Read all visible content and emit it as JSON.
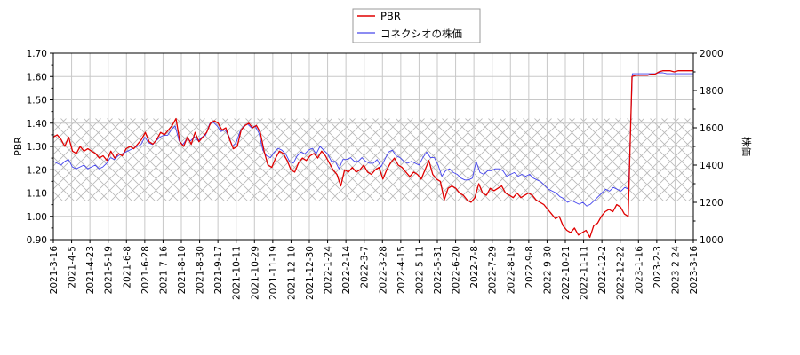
{
  "chart_data": {
    "type": "line",
    "title": "",
    "legend": {
      "position": "upper center",
      "entries": [
        {
          "name": "PBR",
          "color": "#e00000"
        },
        {
          "name": "コネクシオの株価",
          "color": "#4444ee"
        }
      ]
    },
    "left_axis": {
      "label": "PBR",
      "ylim": [
        0.9,
        1.7
      ],
      "ticks": [
        "0.90",
        "1.00",
        "1.10",
        "1.20",
        "1.30",
        "1.40",
        "1.50",
        "1.60",
        "1.70"
      ]
    },
    "right_axis": {
      "label": "株価",
      "ylim": [
        1000,
        2000
      ],
      "ticks": [
        "1000",
        "1200",
        "1400",
        "1600",
        "1800",
        "2000"
      ]
    },
    "x_ticks": [
      "2021-3-16",
      "2021-4-5",
      "2021-4-23",
      "2021-5-19",
      "2021-6-8",
      "2021-6-28",
      "2021-7-16",
      "2021-8-10",
      "2021-8-30",
      "2021-9-17",
      "2021-10-11",
      "2021-10-29",
      "2021-11-19",
      "2021-12-10",
      "2021-12-30",
      "2022-1-24",
      "2022-2-14",
      "2022-3-7",
      "2022-3-28",
      "2022-4-15",
      "2022-5-11",
      "2022-5-31",
      "2022-6-20",
      "2022-7-8",
      "2022-7-29",
      "2022-8-19",
      "2022-9-8",
      "2022-9-30",
      "2022-10-21",
      "2022-11-11",
      "2022-12-2",
      "2022-12-22",
      "2023-1-16",
      "2023-2-3",
      "2023-2-24",
      "2023-3-16"
    ],
    "shaded_band": {
      "pbr_range": [
        1.065,
        1.42
      ],
      "style": "cross-hatch",
      "color": "#bbbbbb"
    },
    "grid": true,
    "series": [
      {
        "name": "PBR",
        "axis": "left",
        "color": "#e00000",
        "values": [
          1.34,
          1.35,
          1.33,
          1.3,
          1.34,
          1.28,
          1.27,
          1.3,
          1.28,
          1.29,
          1.28,
          1.27,
          1.25,
          1.26,
          1.24,
          1.28,
          1.25,
          1.27,
          1.26,
          1.29,
          1.3,
          1.29,
          1.31,
          1.33,
          1.36,
          1.32,
          1.31,
          1.33,
          1.36,
          1.35,
          1.37,
          1.39,
          1.42,
          1.32,
          1.3,
          1.34,
          1.31,
          1.36,
          1.32,
          1.34,
          1.36,
          1.4,
          1.41,
          1.4,
          1.37,
          1.38,
          1.33,
          1.29,
          1.3,
          1.37,
          1.39,
          1.4,
          1.38,
          1.39,
          1.36,
          1.28,
          1.22,
          1.21,
          1.25,
          1.28,
          1.27,
          1.24,
          1.2,
          1.19,
          1.23,
          1.25,
          1.24,
          1.26,
          1.27,
          1.25,
          1.28,
          1.26,
          1.23,
          1.2,
          1.18,
          1.13,
          1.2,
          1.19,
          1.21,
          1.19,
          1.2,
          1.22,
          1.19,
          1.18,
          1.2,
          1.21,
          1.16,
          1.2,
          1.23,
          1.25,
          1.22,
          1.21,
          1.19,
          1.17,
          1.19,
          1.18,
          1.16,
          1.2,
          1.24,
          1.18,
          1.16,
          1.15,
          1.07,
          1.12,
          1.13,
          1.12,
          1.1,
          1.09,
          1.07,
          1.06,
          1.08,
          1.14,
          1.1,
          1.09,
          1.12,
          1.11,
          1.12,
          1.13,
          1.1,
          1.09,
          1.08,
          1.1,
          1.08,
          1.09,
          1.1,
          1.09,
          1.07,
          1.06,
          1.05,
          1.03,
          1.01,
          0.99,
          1.0,
          0.96,
          0.94,
          0.93,
          0.95,
          0.92,
          0.93,
          0.94,
          0.91,
          0.96,
          0.97,
          1.0,
          1.02,
          1.03,
          1.02,
          1.05,
          1.04,
          1.01,
          1.0,
          1.6,
          1.605,
          1.605,
          1.605,
          1.605,
          1.61,
          1.61,
          1.62,
          1.625,
          1.625,
          1.625,
          1.62,
          1.625,
          1.625,
          1.625,
          1.625,
          1.625
        ]
      },
      {
        "name": "コネクシオの株価",
        "axis": "right",
        "color": "#4444ee",
        "values": [
          1420,
          1410,
          1400,
          1420,
          1430,
          1390,
          1380,
          1390,
          1400,
          1380,
          1390,
          1400,
          1380,
          1390,
          1410,
          1440,
          1430,
          1450,
          1460,
          1470,
          1480,
          1490,
          1500,
          1510,
          1550,
          1520,
          1510,
          1530,
          1550,
          1560,
          1560,
          1590,
          1610,
          1530,
          1510,
          1540,
          1530,
          1550,
          1530,
          1550,
          1560,
          1620,
          1630,
          1610,
          1580,
          1590,
          1560,
          1500,
          1520,
          1580,
          1610,
          1620,
          1600,
          1610,
          1570,
          1480,
          1450,
          1440,
          1470,
          1490,
          1480,
          1460,
          1420,
          1410,
          1450,
          1470,
          1460,
          1480,
          1490,
          1460,
          1500,
          1480,
          1460,
          1420,
          1420,
          1380,
          1430,
          1430,
          1440,
          1420,
          1420,
          1440,
          1420,
          1410,
          1410,
          1430,
          1390,
          1430,
          1470,
          1480,
          1450,
          1440,
          1420,
          1410,
          1420,
          1410,
          1400,
          1440,
          1470,
          1440,
          1440,
          1400,
          1340,
          1370,
          1380,
          1360,
          1350,
          1330,
          1320,
          1320,
          1330,
          1420,
          1360,
          1350,
          1370,
          1370,
          1380,
          1380,
          1370,
          1340,
          1350,
          1360,
          1340,
          1350,
          1340,
          1350,
          1330,
          1320,
          1310,
          1290,
          1270,
          1260,
          1250,
          1230,
          1220,
          1200,
          1210,
          1200,
          1190,
          1200,
          1180,
          1190,
          1210,
          1230,
          1250,
          1270,
          1260,
          1280,
          1270,
          1260,
          1280,
          1270,
          1890,
          1890,
          1890,
          1890,
          1890,
          1890,
          1890,
          1895,
          1895,
          1890,
          1890,
          1890,
          1890,
          1890,
          1890,
          1890,
          1890
        ]
      }
    ]
  }
}
